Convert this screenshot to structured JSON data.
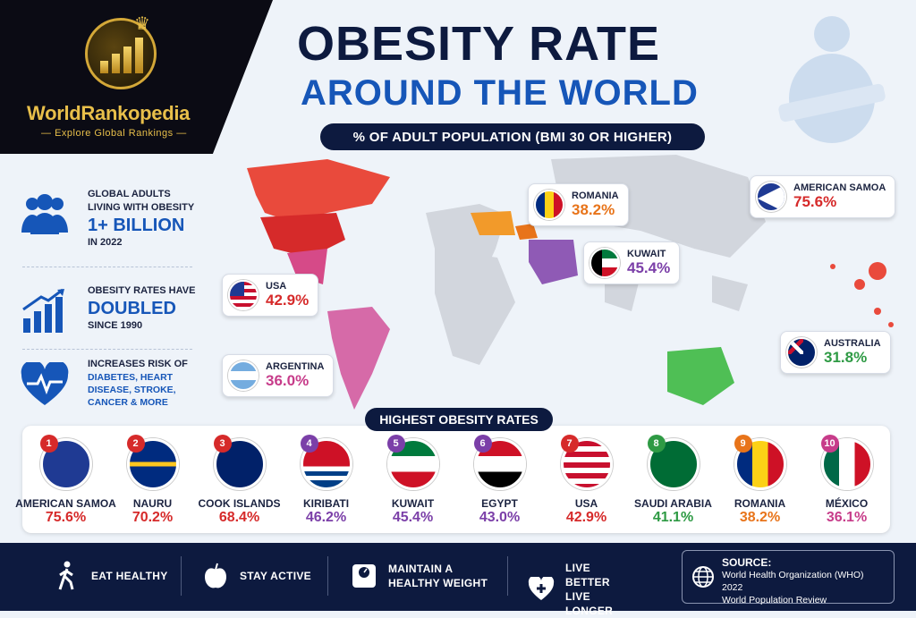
{
  "brand": {
    "name": "WorldRankopedia",
    "tagline": "Explore Global Rankings"
  },
  "title": {
    "line1": "OBESITY RATE",
    "line2": "AROUND THE WORLD",
    "subtitle": "% OF ADULT POPULATION (BMI 30 OR HIGHER)"
  },
  "stats": [
    {
      "icon": "people-icon",
      "pre": "GLOBAL ADULTS LIVING WITH OBESITY",
      "big": "1+ BILLION",
      "post": "IN 2022"
    },
    {
      "icon": "chart-up-icon",
      "pre": "OBESITY RATES HAVE",
      "big": "DOUBLED",
      "post": "SINCE 1990"
    },
    {
      "icon": "heart-pulse-icon",
      "pre": "INCREASES RISK OF",
      "big": "DIABETES, HEART DISEASE, STROKE, CANCER & MORE",
      "post": ""
    }
  ],
  "callouts": [
    {
      "country": "USA",
      "value": "42.9%",
      "color": "#d62a2a"
    },
    {
      "country": "ARGENTINA",
      "value": "36.0%",
      "color": "#c73c8a"
    },
    {
      "country": "ROMANIA",
      "value": "38.2%",
      "color": "#e8741a"
    },
    {
      "country": "KUWAIT",
      "value": "45.4%",
      "color": "#7b3fa8"
    },
    {
      "country": "AMERICAN SAMOA",
      "value": "75.6%",
      "color": "#d62a2a"
    },
    {
      "country": "AUSTRALIA",
      "value": "31.8%",
      "color": "#2e9a44"
    }
  ],
  "ranking": {
    "title": "HIGHEST OBESITY RATES",
    "items": [
      {
        "rank": "1",
        "country": "AMERICAN SAMOA",
        "value": "75.6%",
        "color": "#d62a2a"
      },
      {
        "rank": "2",
        "country": "NAURU",
        "value": "70.2%",
        "color": "#d62a2a"
      },
      {
        "rank": "3",
        "country": "COOK ISLANDS",
        "value": "68.4%",
        "color": "#d62a2a"
      },
      {
        "rank": "4",
        "country": "KIRIBATI",
        "value": "46.2%",
        "color": "#7b3fa8"
      },
      {
        "rank": "5",
        "country": "KUWAIT",
        "value": "45.4%",
        "color": "#7b3fa8"
      },
      {
        "rank": "6",
        "country": "EGYPT",
        "value": "43.0%",
        "color": "#7b3fa8"
      },
      {
        "rank": "7",
        "country": "USA",
        "value": "42.9%",
        "color": "#d62a2a"
      },
      {
        "rank": "8",
        "country": "SAUDI ARABIA",
        "value": "41.1%",
        "color": "#2e9a44"
      },
      {
        "rank": "9",
        "country": "ROMANIA",
        "value": "38.2%",
        "color": "#e8741a"
      },
      {
        "rank": "10",
        "country": "MÉXICO",
        "value": "36.1%",
        "color": "#c73c8a"
      }
    ]
  },
  "footer": {
    "tips": [
      {
        "icon": "walking-icon",
        "label": "EAT HEALTHY"
      },
      {
        "icon": "apple-icon",
        "label": "STAY ACTIVE"
      },
      {
        "icon": "scale-icon",
        "label": "MAINTAIN A HEALTHY WEIGHT"
      },
      {
        "icon": "heart-plus-icon",
        "label": "LIVE BETTER LIVE LONGER"
      }
    ],
    "source": {
      "title": "SOURCE:",
      "line1": "World Health Organization (WHO) 2022",
      "line2": "World Population Review"
    }
  }
}
